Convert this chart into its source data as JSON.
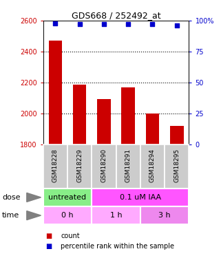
{
  "title": "GDS668 / 252492_at",
  "samples": [
    "GSM18228",
    "GSM18229",
    "GSM18290",
    "GSM18291",
    "GSM18294",
    "GSM18295"
  ],
  "counts": [
    2470,
    2185,
    2095,
    2170,
    1998,
    1920
  ],
  "percentiles": [
    98,
    97,
    97,
    97,
    97,
    96
  ],
  "bar_color": "#cc0000",
  "dot_color": "#0000cc",
  "ylim_left": [
    1800,
    2600
  ],
  "ylim_right": [
    0,
    100
  ],
  "yticks_left": [
    1800,
    2000,
    2200,
    2400,
    2600
  ],
  "yticks_right": [
    0,
    25,
    50,
    75,
    100
  ],
  "yticklabels_right": [
    "0",
    "25",
    "50",
    "75",
    "100%"
  ],
  "gridlines": [
    2000,
    2200,
    2400
  ],
  "dose_labels": [
    {
      "text": "untreated",
      "start": 0,
      "end": 2,
      "color": "#88ee88"
    },
    {
      "text": "0.1 uM IAA",
      "start": 2,
      "end": 6,
      "color": "#ff55ff"
    }
  ],
  "time_labels": [
    {
      "text": "0 h",
      "start": 0,
      "end": 2,
      "color": "#ffaaff"
    },
    {
      "text": "1 h",
      "start": 2,
      "end": 4,
      "color": "#ffaaff"
    },
    {
      "text": "3 h",
      "start": 4,
      "end": 6,
      "color": "#ee88ee"
    }
  ],
  "dose_row_label": "dose",
  "time_row_label": "time",
  "legend_count_label": "count",
  "legend_pct_label": "percentile rank within the sample",
  "bar_color_red": "#cc0000",
  "dot_color_blue": "#0000cc",
  "sample_box_color": "#cccccc",
  "left_tick_color": "#cc0000",
  "right_tick_color": "#0000cc"
}
